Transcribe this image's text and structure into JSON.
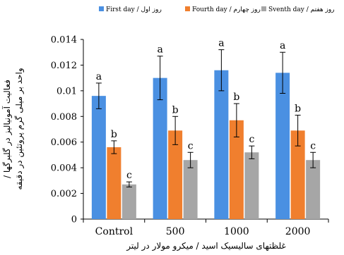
{
  "chart_data": {
    "type": "bar",
    "title": "",
    "categories": [
      "Control",
      "500",
      "1000",
      "2000"
    ],
    "series": [
      {
        "name": "First day / روز اول",
        "color": "#4A90E2",
        "values": [
          0.0096,
          0.011,
          0.0116,
          0.0114
        ],
        "errors": [
          0.001,
          0.0017,
          0.0016,
          0.0016
        ],
        "letters": [
          "a",
          "a",
          "a",
          "a"
        ]
      },
      {
        "name": "Fourth day / روز چهارم",
        "color": "#F07F2E",
        "values": [
          0.0056,
          0.0069,
          0.0077,
          0.0069
        ],
        "errors": [
          0.0005,
          0.0011,
          0.0013,
          0.0012
        ],
        "letters": [
          "b",
          "b",
          "b",
          "b"
        ]
      },
      {
        "name": "Sventh day / روز هفتم",
        "color": "#A6A6A6",
        "values": [
          0.0027,
          0.0046,
          0.0052,
          0.0046
        ],
        "errors": [
          0.0002,
          0.0006,
          0.0005,
          0.0006
        ],
        "letters": [
          "c",
          "c",
          "c",
          "c"
        ]
      }
    ],
    "ylim": [
      0,
      0.014
    ],
    "yticks": [
      "0",
      "0.002",
      "0.004",
      "0.006",
      "0.008",
      "0.01",
      "0.012",
      "0.014"
    ],
    "xlabel": "غلظتهای سالیسیک اسید / میکرو مولار در لیتر",
    "ylabel": "فعالیت آمونیالیز در گلبرگها / واحد بر میلی گرم پروتئین در دقیقه",
    "grid": false,
    "legend_position": "top"
  }
}
